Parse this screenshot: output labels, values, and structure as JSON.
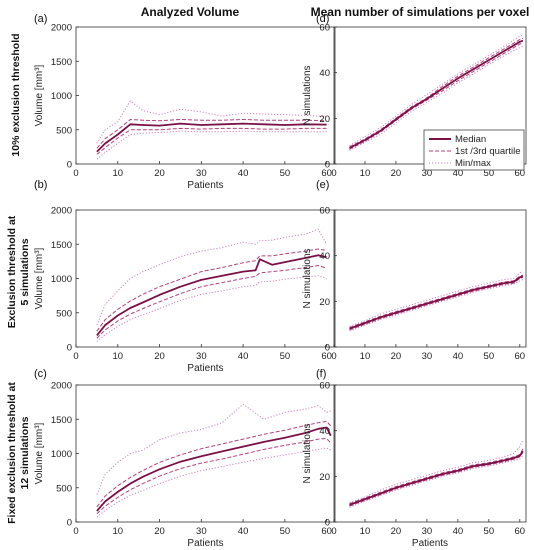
{
  "column_titles": [
    "Analyzed Volume",
    "Mean number of simulations per voxel"
  ],
  "row_labels": [
    "10% exclusion threshold",
    "Exclusion threshold at",
    "5 simulations",
    "Fixed exclusion threshold at",
    "12 simulations"
  ],
  "legend": [
    "Median",
    "1st /3rd quartile",
    "Min/max"
  ],
  "colors": {
    "median": "#7a1048",
    "quartile": "#b5407e",
    "minmax": "#cf7fc0"
  },
  "chart_data": [
    {
      "id": "a",
      "panel_label": "(a)",
      "type": "line",
      "xlabel": "Patients",
      "ylabel": "Volume [mm³]",
      "xlim": [
        0,
        62
      ],
      "ylim": [
        0,
        2000
      ],
      "xticks": [
        0,
        10,
        20,
        30,
        40,
        50,
        60
      ],
      "yticks": [
        0,
        500,
        1000,
        1500,
        2000
      ],
      "x": [
        5,
        7,
        10,
        13,
        16,
        20,
        25,
        30,
        35,
        40,
        45,
        50,
        55,
        60
      ],
      "series": [
        {
          "role": "median",
          "values": [
            180,
            300,
            430,
            580,
            570,
            560,
            590,
            570,
            580,
            590,
            580,
            570,
            580,
            575
          ]
        },
        {
          "role": "q1",
          "values": [
            140,
            240,
            380,
            500,
            500,
            500,
            520,
            510,
            520,
            520,
            510,
            510,
            520,
            520
          ]
        },
        {
          "role": "q3",
          "values": [
            230,
            370,
            500,
            650,
            640,
            630,
            650,
            640,
            640,
            650,
            640,
            640,
            640,
            630
          ]
        },
        {
          "role": "min",
          "values": [
            70,
            170,
            300,
            430,
            450,
            460,
            480,
            470,
            470,
            480,
            470,
            470,
            470,
            470
          ]
        },
        {
          "role": "max",
          "values": [
            300,
            500,
            620,
            920,
            780,
            720,
            800,
            760,
            700,
            740,
            730,
            720,
            710,
            690
          ]
        }
      ]
    },
    {
      "id": "b",
      "panel_label": "(b)",
      "type": "line",
      "xlabel": "Patients",
      "ylabel": "Volume [mm³]",
      "xlim": [
        0,
        62
      ],
      "ylim": [
        0,
        2000
      ],
      "xticks": [
        0,
        10,
        20,
        30,
        40,
        50,
        60
      ],
      "yticks": [
        0,
        500,
        1000,
        1500,
        2000
      ],
      "x": [
        5,
        7,
        10,
        13,
        16,
        20,
        25,
        30,
        35,
        40,
        43,
        44,
        47,
        50,
        55,
        58,
        60
      ],
      "series": [
        {
          "role": "median",
          "values": [
            170,
            320,
            460,
            570,
            650,
            760,
            880,
            980,
            1040,
            1100,
            1120,
            1280,
            1200,
            1240,
            1300,
            1340,
            1310
          ]
        },
        {
          "role": "q1",
          "values": [
            130,
            250,
            380,
            480,
            560,
            660,
            780,
            880,
            940,
            1000,
            1030,
            1080,
            1100,
            1120,
            1160,
            1190,
            1150
          ]
        },
        {
          "role": "q3",
          "values": [
            230,
            400,
            550,
            670,
            770,
            880,
            990,
            1100,
            1160,
            1230,
            1260,
            1330,
            1330,
            1360,
            1400,
            1430,
            1410
          ]
        },
        {
          "role": "min",
          "values": [
            80,
            180,
            300,
            400,
            470,
            560,
            680,
            770,
            820,
            880,
            900,
            950,
            960,
            990,
            1020,
            1040,
            1000
          ]
        },
        {
          "role": "max",
          "values": [
            320,
            620,
            820,
            1000,
            1100,
            1200,
            1320,
            1400,
            1450,
            1530,
            1500,
            1550,
            1560,
            1600,
            1650,
            1720,
            1500
          ]
        }
      ]
    },
    {
      "id": "c",
      "panel_label": "(c)",
      "type": "line",
      "xlabel": "Patients",
      "ylabel": "Volume [mm³]",
      "xlim": [
        0,
        62
      ],
      "ylim": [
        0,
        2000
      ],
      "xticks": [
        0,
        10,
        20,
        30,
        40,
        50,
        60
      ],
      "yticks": [
        0,
        500,
        1000,
        1500,
        2000
      ],
      "x": [
        5,
        7,
        10,
        13,
        16,
        20,
        25,
        30,
        35,
        40,
        45,
        50,
        55,
        58,
        60,
        61
      ],
      "series": [
        {
          "role": "median",
          "values": [
            160,
            300,
            440,
            560,
            660,
            770,
            880,
            960,
            1030,
            1100,
            1170,
            1230,
            1300,
            1360,
            1380,
            1260
          ]
        },
        {
          "role": "q1",
          "values": [
            120,
            230,
            360,
            470,
            560,
            670,
            780,
            860,
            920,
            990,
            1060,
            1120,
            1170,
            1210,
            1220,
            1150
          ]
        },
        {
          "role": "q3",
          "values": [
            220,
            380,
            530,
            650,
            750,
            870,
            980,
            1070,
            1140,
            1210,
            1280,
            1340,
            1410,
            1450,
            1470,
            1400
          ]
        },
        {
          "role": "min",
          "values": [
            70,
            170,
            290,
            390,
            460,
            560,
            670,
            750,
            810,
            870,
            930,
            980,
            1030,
            1060,
            1080,
            1050
          ]
        },
        {
          "role": "max",
          "values": [
            400,
            700,
            870,
            1000,
            1050,
            1200,
            1300,
            1350,
            1450,
            1720,
            1500,
            1600,
            1650,
            1700,
            1600,
            1620
          ]
        }
      ]
    },
    {
      "id": "d",
      "panel_label": "(d)",
      "type": "line",
      "xlabel": "",
      "ylabel": "N simulations",
      "xlim": [
        0,
        62
      ],
      "ylim": [
        0,
        60
      ],
      "xticks": [
        0,
        10,
        20,
        30,
        40,
        50,
        60
      ],
      "yticks": [
        0,
        20,
        40,
        60
      ],
      "x": [
        5,
        10,
        15,
        20,
        25,
        30,
        35,
        40,
        45,
        50,
        55,
        60,
        61
      ],
      "series": [
        {
          "role": "median",
          "values": [
            7,
            10.5,
            14.5,
            19.5,
            24.5,
            28.5,
            33,
            37.5,
            41.5,
            45.5,
            49.5,
            53.5,
            54
          ]
        },
        {
          "role": "q1",
          "values": [
            6.5,
            10,
            14,
            19,
            24,
            28,
            32,
            36.5,
            40.5,
            44.5,
            48.5,
            52.5,
            53
          ]
        },
        {
          "role": "q3",
          "values": [
            7.5,
            11,
            15,
            20,
            25,
            29,
            34,
            38.5,
            42.5,
            46.5,
            50.5,
            54.5,
            55
          ]
        },
        {
          "role": "min",
          "values": [
            6,
            9.5,
            13,
            18,
            23,
            27,
            31,
            35.5,
            39.5,
            43.5,
            47.5,
            51,
            51.5
          ]
        },
        {
          "role": "max",
          "values": [
            8,
            12,
            16,
            21,
            26,
            30.5,
            35,
            39.5,
            43.5,
            47.5,
            51.5,
            56,
            56.5
          ]
        }
      ]
    },
    {
      "id": "e",
      "panel_label": "(e)",
      "type": "line",
      "xlabel": "",
      "ylabel": "N simulations",
      "xlim": [
        0,
        62
      ],
      "ylim": [
        0,
        60
      ],
      "xticks": [
        0,
        10,
        20,
        30,
        40,
        50,
        60
      ],
      "yticks": [
        0,
        20,
        40,
        60
      ],
      "x": [
        5,
        10,
        15,
        20,
        25,
        30,
        35,
        40,
        45,
        50,
        55,
        58,
        60,
        61
      ],
      "series": [
        {
          "role": "median",
          "values": [
            8,
            10.5,
            13,
            15,
            17,
            19,
            21,
            23,
            25,
            26.5,
            28,
            28.5,
            30.5,
            31
          ]
        },
        {
          "role": "q1",
          "values": [
            7.5,
            10,
            12.5,
            14.5,
            16.5,
            18.5,
            20.5,
            22.5,
            24.5,
            26,
            27.5,
            28,
            30,
            30.5
          ]
        },
        {
          "role": "q3",
          "values": [
            8.5,
            11,
            13.5,
            15.5,
            17.5,
            19.5,
            21.5,
            23.5,
            25.5,
            27,
            28.5,
            29,
            31,
            31.5
          ]
        },
        {
          "role": "min",
          "values": [
            7,
            9.5,
            12,
            14,
            16,
            18,
            20,
            22,
            24,
            25.5,
            27,
            27.5,
            29,
            29.5
          ]
        },
        {
          "role": "max",
          "values": [
            9,
            11.5,
            14.5,
            16.5,
            18.5,
            20.5,
            22.5,
            24.5,
            26.5,
            28,
            29.5,
            30,
            32.5,
            33
          ]
        }
      ]
    },
    {
      "id": "f",
      "panel_label": "(f)",
      "type": "line",
      "xlabel": "Patients",
      "ylabel": "N simulations",
      "xlim": [
        0,
        62
      ],
      "ylim": [
        0,
        60
      ],
      "xticks": [
        0,
        10,
        20,
        30,
        40,
        50,
        60
      ],
      "yticks": [
        0,
        20,
        40,
        60
      ],
      "x": [
        5,
        10,
        15,
        20,
        25,
        30,
        35,
        40,
        45,
        50,
        55,
        58,
        60,
        61
      ],
      "series": [
        {
          "role": "median",
          "values": [
            7.5,
            10,
            12.5,
            15,
            17,
            19,
            21,
            22.5,
            24.5,
            25.5,
            27,
            28,
            29,
            31
          ]
        },
        {
          "role": "q1",
          "values": [
            7,
            9.5,
            12,
            14.5,
            16.5,
            18.5,
            20.5,
            22,
            24,
            25,
            26.5,
            27.5,
            28.5,
            30.5
          ]
        },
        {
          "role": "q3",
          "values": [
            8,
            10.5,
            13,
            15.5,
            17.5,
            19.5,
            21.5,
            23,
            25,
            26,
            27.5,
            28.5,
            29.5,
            32
          ]
        },
        {
          "role": "min",
          "values": [
            6.5,
            9,
            11.5,
            14,
            16,
            18,
            20,
            21.5,
            23.5,
            24.5,
            26,
            27,
            27.5,
            29
          ]
        },
        {
          "role": "max",
          "values": [
            8.5,
            11,
            14,
            16.5,
            18.5,
            20.5,
            22.5,
            24,
            26,
            27,
            28.5,
            30,
            33,
            36
          ]
        }
      ]
    }
  ]
}
